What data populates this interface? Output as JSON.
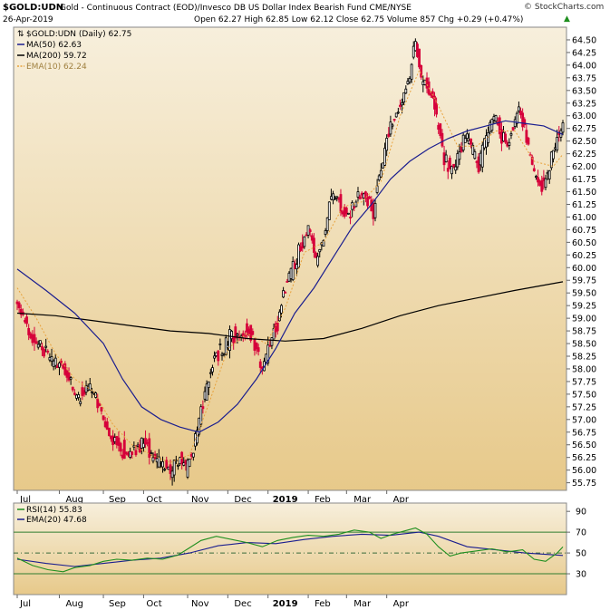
{
  "header": {
    "symbol": "$GOLD:UDN",
    "description": "Gold - Continuous Contract (EOD)/Invesco DB US Dollar Index Bearish Fund CME/NYSE",
    "date": "26-Apr-2019",
    "ohlc": "Open 62.27  High 62.85  Low 62.12  Close 62.75  Volume 857  Chg +0.29 (+0.47%)",
    "brand": "© StockCharts.com",
    "up_arrow": "▲"
  },
  "colors": {
    "panel_bg_top": "#f7efdc",
    "panel_bg_bottom": "#e7c98a",
    "up": "#000000",
    "down": "#d6003a",
    "ma50": "#1b1e8f",
    "ma200": "#000000",
    "ema10": "#e8a23c",
    "rsi": "#1f8f1f",
    "rsi_ema": "#1b1e8f"
  },
  "chart_data": [
    {
      "type": "candlestick",
      "title": "$GOLD:UDN (Daily) 62.75",
      "legend": [
        {
          "label": "$GOLD:UDN (Daily) 62.75",
          "color": "#000000"
        },
        {
          "label": "MA(50) 62.63",
          "color": "#1b1e8f"
        },
        {
          "label": "MA(200) 59.72",
          "color": "#000000"
        },
        {
          "label": "EMA(10) 62.24",
          "color": "#e8a23c"
        }
      ],
      "legend_position": "top-left",
      "x_labels": [
        "Jul",
        "Aug",
        "Sep",
        "Oct",
        "Nov",
        "Dec",
        "2019",
        "Feb",
        "Mar",
        "Apr"
      ],
      "y_ticks": [
        "55.75",
        "56.00",
        "56.25",
        "56.50",
        "56.75",
        "57.00",
        "57.25",
        "57.50",
        "57.75",
        "58.00",
        "58.25",
        "58.50",
        "58.75",
        "59.00",
        "59.25",
        "59.50",
        "59.75",
        "60.00",
        "60.25",
        "60.50",
        "60.75",
        "61.00",
        "61.25",
        "61.50",
        "61.75",
        "62.00",
        "62.25",
        "62.50",
        "62.75",
        "63.00",
        "63.25",
        "63.50",
        "63.75",
        "64.00",
        "64.25",
        "64.50"
      ],
      "ylim": [
        55.6,
        64.75
      ],
      "grid": false,
      "price_path": [
        [
          0,
          59.3
        ],
        [
          6,
          58.7
        ],
        [
          12,
          58.4
        ],
        [
          18,
          58.2
        ],
        [
          24,
          58.0
        ],
        [
          28,
          57.7
        ],
        [
          32,
          57.4
        ],
        [
          36,
          57.6
        ],
        [
          40,
          57.5
        ],
        [
          45,
          57.0
        ],
        [
          50,
          56.6
        ],
        [
          55,
          56.4
        ],
        [
          60,
          56.3
        ],
        [
          66,
          56.6
        ],
        [
          70,
          56.3
        ],
        [
          75,
          56.1
        ],
        [
          80,
          56.0
        ],
        [
          85,
          56.2
        ],
        [
          88,
          56.0
        ],
        [
          92,
          56.4
        ],
        [
          95,
          57.0
        ],
        [
          100,
          57.8
        ],
        [
          104,
          58.3
        ],
        [
          108,
          58.4
        ],
        [
          112,
          58.7
        ],
        [
          116,
          58.5
        ],
        [
          120,
          58.8
        ],
        [
          125,
          58.4
        ],
        [
          128,
          58.0
        ],
        [
          132,
          58.5
        ],
        [
          136,
          58.9
        ],
        [
          140,
          59.6
        ],
        [
          144,
          60.0
        ],
        [
          148,
          60.4
        ],
        [
          152,
          60.8
        ],
        [
          156,
          60.2
        ],
        [
          160,
          60.6
        ],
        [
          164,
          61.4
        ],
        [
          168,
          61.3
        ],
        [
          172,
          61.0
        ],
        [
          176,
          61.2
        ],
        [
          180,
          61.5
        ],
        [
          184,
          61.3
        ],
        [
          186,
          61.0
        ],
        [
          188,
          61.7
        ],
        [
          190,
          62.0
        ],
        [
          194,
          62.7
        ],
        [
          198,
          63.0
        ],
        [
          202,
          63.4
        ],
        [
          205,
          63.8
        ],
        [
          208,
          64.5
        ],
        [
          211,
          63.7
        ],
        [
          214,
          63.6
        ],
        [
          217,
          63.3
        ],
        [
          220,
          62.8
        ],
        [
          223,
          62.2
        ],
        [
          226,
          61.9
        ],
        [
          229,
          62.1
        ],
        [
          232,
          62.4
        ],
        [
          235,
          62.6
        ],
        [
          238,
          62.3
        ],
        [
          241,
          62.0
        ],
        [
          244,
          62.5
        ],
        [
          247,
          62.8
        ],
        [
          250,
          63.0
        ],
        [
          253,
          62.6
        ],
        [
          256,
          62.4
        ],
        [
          259,
          62.8
        ],
        [
          262,
          63.1
        ],
        [
          265,
          62.7
        ],
        [
          268,
          62.2
        ],
        [
          271,
          61.8
        ],
        [
          274,
          61.6
        ],
        [
          277,
          61.8
        ],
        [
          280,
          62.3
        ],
        [
          283,
          62.6
        ],
        [
          285,
          62.75
        ]
      ],
      "ma50": [
        [
          0,
          59.97
        ],
        [
          15,
          59.55
        ],
        [
          30,
          59.1
        ],
        [
          45,
          58.5
        ],
        [
          55,
          57.8
        ],
        [
          65,
          57.25
        ],
        [
          75,
          57.0
        ],
        [
          85,
          56.85
        ],
        [
          95,
          56.75
        ],
        [
          105,
          56.95
        ],
        [
          115,
          57.3
        ],
        [
          125,
          57.8
        ],
        [
          135,
          58.4
        ],
        [
          145,
          59.1
        ],
        [
          155,
          59.6
        ],
        [
          165,
          60.2
        ],
        [
          175,
          60.8
        ],
        [
          185,
          61.25
        ],
        [
          195,
          61.75
        ],
        [
          205,
          62.1
        ],
        [
          215,
          62.35
        ],
        [
          225,
          62.55
        ],
        [
          235,
          62.7
        ],
        [
          245,
          62.8
        ],
        [
          255,
          62.9
        ],
        [
          265,
          62.85
        ],
        [
          275,
          62.8
        ],
        [
          285,
          62.63
        ]
      ],
      "ma200": [
        [
          0,
          59.1
        ],
        [
          20,
          59.05
        ],
        [
          40,
          58.95
        ],
        [
          60,
          58.85
        ],
        [
          80,
          58.75
        ],
        [
          100,
          58.7
        ],
        [
          120,
          58.6
        ],
        [
          140,
          58.55
        ],
        [
          160,
          58.6
        ],
        [
          180,
          58.8
        ],
        [
          200,
          59.05
        ],
        [
          220,
          59.25
        ],
        [
          240,
          59.4
        ],
        [
          260,
          59.55
        ],
        [
          285,
          59.72
        ]
      ],
      "ema10": [
        [
          0,
          59.6
        ],
        [
          10,
          59.0
        ],
        [
          20,
          58.3
        ],
        [
          30,
          57.8
        ],
        [
          40,
          57.55
        ],
        [
          50,
          56.9
        ],
        [
          60,
          56.5
        ],
        [
          70,
          56.3
        ],
        [
          80,
          56.15
        ],
        [
          90,
          56.3
        ],
        [
          100,
          57.3
        ],
        [
          110,
          58.4
        ],
        [
          120,
          58.7
        ],
        [
          130,
          58.5
        ],
        [
          140,
          59.2
        ],
        [
          150,
          60.3
        ],
        [
          160,
          60.5
        ],
        [
          170,
          61.2
        ],
        [
          180,
          61.3
        ],
        [
          190,
          61.7
        ],
        [
          200,
          63.0
        ],
        [
          210,
          63.9
        ],
        [
          220,
          63.2
        ],
        [
          230,
          62.4
        ],
        [
          240,
          62.4
        ],
        [
          250,
          62.7
        ],
        [
          260,
          62.7
        ],
        [
          270,
          62.1
        ],
        [
          280,
          62.0
        ],
        [
          285,
          62.24
        ]
      ]
    },
    {
      "type": "line",
      "title": "RSI(14) 55.83",
      "legend": [
        {
          "label": "RSI(14) 55.83",
          "color": "#1f8f1f"
        },
        {
          "label": "EMA(20) 47.68",
          "color": "#1b1e8f"
        }
      ],
      "x_labels": [
        "Jul",
        "Aug",
        "Sep",
        "Oct",
        "Nov",
        "Dec",
        "2019",
        "Feb",
        "Mar",
        "Apr"
      ],
      "y_ticks": [
        "30",
        "50",
        "70",
        "90"
      ],
      "ylim": [
        10,
        98
      ],
      "reference_lines": [
        30,
        50,
        70
      ],
      "rsi": [
        [
          0,
          45
        ],
        [
          8,
          38
        ],
        [
          16,
          34
        ],
        [
          24,
          32
        ],
        [
          30,
          36
        ],
        [
          38,
          38
        ],
        [
          45,
          42
        ],
        [
          52,
          44
        ],
        [
          60,
          43
        ],
        [
          68,
          45
        ],
        [
          76,
          44
        ],
        [
          84,
          48
        ],
        [
          90,
          55
        ],
        [
          96,
          62
        ],
        [
          104,
          66
        ],
        [
          112,
          63
        ],
        [
          120,
          60
        ],
        [
          128,
          56
        ],
        [
          136,
          62
        ],
        [
          144,
          65
        ],
        [
          152,
          67
        ],
        [
          160,
          66
        ],
        [
          168,
          68
        ],
        [
          176,
          72
        ],
        [
          184,
          70
        ],
        [
          190,
          64
        ],
        [
          196,
          68
        ],
        [
          204,
          72
        ],
        [
          208,
          74
        ],
        [
          214,
          68
        ],
        [
          220,
          56
        ],
        [
          226,
          47
        ],
        [
          232,
          50
        ],
        [
          240,
          52
        ],
        [
          248,
          54
        ],
        [
          256,
          51
        ],
        [
          264,
          53
        ],
        [
          270,
          44
        ],
        [
          276,
          42
        ],
        [
          282,
          50
        ],
        [
          285,
          55.83
        ]
      ],
      "rsi_ema": [
        [
          0,
          44
        ],
        [
          15,
          40
        ],
        [
          30,
          37
        ],
        [
          45,
          40
        ],
        [
          60,
          43
        ],
        [
          75,
          45
        ],
        [
          90,
          50
        ],
        [
          105,
          57
        ],
        [
          120,
          60
        ],
        [
          135,
          59
        ],
        [
          150,
          63
        ],
        [
          165,
          66
        ],
        [
          180,
          68
        ],
        [
          195,
          67
        ],
        [
          210,
          70
        ],
        [
          220,
          66
        ],
        [
          235,
          56
        ],
        [
          250,
          53
        ],
        [
          265,
          50
        ],
        [
          285,
          47.68
        ]
      ]
    }
  ]
}
